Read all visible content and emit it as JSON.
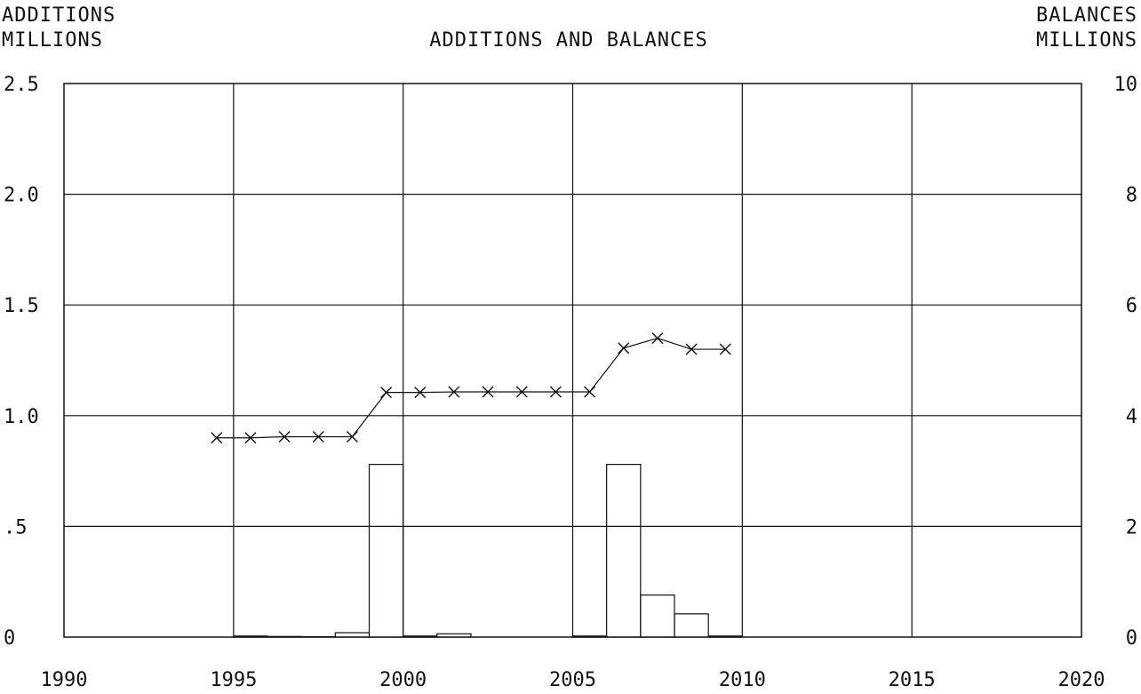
{
  "chart_data": {
    "type": "bar+line",
    "title": "ADDITIONS AND BALANCES",
    "left_axis": {
      "label_line1": "ADDITIONS",
      "label_line2": "MILLIONS",
      "ylim": [
        0,
        2.5
      ],
      "ticks": [
        "0",
        ".5",
        "1.0",
        "1.5",
        "2.0",
        "2.5"
      ]
    },
    "right_axis": {
      "label_line1": "BALANCES",
      "label_line2": "MILLIONS",
      "ylim": [
        0,
        10
      ],
      "ticks": [
        "0",
        "2",
        "4",
        "6",
        "8",
        "10"
      ]
    },
    "x_axis": {
      "xlim": [
        1990,
        2020
      ],
      "ticks": [
        "1990",
        "1995",
        "2000",
        "2005",
        "2010",
        "2015",
        "2020"
      ]
    },
    "grid": true,
    "additions": {
      "axis": "left",
      "years": [
        1995,
        1996,
        1997,
        1998,
        1999,
        2000,
        2001,
        2005,
        2006,
        2007,
        2008,
        2009
      ],
      "values": [
        0.005,
        0.003,
        0.002,
        0.02,
        0.78,
        0.005,
        0.015,
        0.005,
        0.78,
        0.19,
        0.105,
        0.005
      ]
    },
    "balances": {
      "axis": "right",
      "years": [
        1994.5,
        1995.5,
        1996.5,
        1997.5,
        1998.5,
        1999.5,
        2000.5,
        2001.5,
        2002.5,
        2003.5,
        2004.5,
        2005.5,
        2006.5,
        2007.5,
        2008.5,
        2009.5
      ],
      "values": [
        3.6,
        3.6,
        3.62,
        3.62,
        3.62,
        4.42,
        4.42,
        4.43,
        4.43,
        4.43,
        4.43,
        4.43,
        5.22,
        5.4,
        5.2,
        5.2
      ]
    }
  }
}
